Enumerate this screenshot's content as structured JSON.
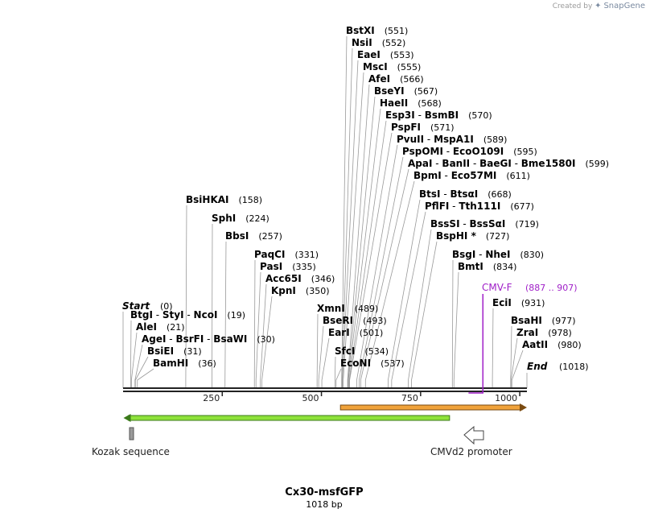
{
  "credit": {
    "prefix": "Created by",
    "brand": "SnapGene"
  },
  "map": {
    "name": "Cx30-msfGFP",
    "length_label": "1018 bp",
    "length": 1018,
    "ticks": [
      "250",
      "500",
      "750",
      "1000"
    ],
    "start_label": "Start",
    "start_pos": "(0)",
    "end_label": "End",
    "end_pos": "(1018)"
  },
  "sites": [
    {
      "names": [
        "BstXI"
      ],
      "pos": 551,
      "label": "(551)"
    },
    {
      "names": [
        "NsiI"
      ],
      "pos": 552,
      "label": "(552)"
    },
    {
      "names": [
        "EaeI"
      ],
      "pos": 553,
      "label": "(553)"
    },
    {
      "names": [
        "MscI"
      ],
      "pos": 555,
      "label": "(555)"
    },
    {
      "names": [
        "AfeI"
      ],
      "pos": 566,
      "label": "(566)"
    },
    {
      "names": [
        "BseYI"
      ],
      "pos": 567,
      "label": "(567)"
    },
    {
      "names": [
        "HaeII"
      ],
      "pos": 568,
      "label": "(568)"
    },
    {
      "names": [
        "Esp3I",
        "BsmBI"
      ],
      "pos": 570,
      "label": "(570)"
    },
    {
      "names": [
        "PspFI"
      ],
      "pos": 571,
      "label": "(571)"
    },
    {
      "names": [
        "PvuII",
        "MspA1I"
      ],
      "pos": 589,
      "label": "(589)"
    },
    {
      "names": [
        "PspOMI",
        "EcoO109I"
      ],
      "pos": 595,
      "label": "(595)"
    },
    {
      "names": [
        "ApaI",
        "BanII",
        "BaeGI",
        "Bme1580I"
      ],
      "pos": 599,
      "label": "(599)"
    },
    {
      "names": [
        "BpmI",
        "Eco57MI"
      ],
      "pos": 611,
      "label": "(611)"
    },
    {
      "names": [
        "BtsI",
        "BtsαI"
      ],
      "pos": 668,
      "label": "(668)"
    },
    {
      "names": [
        "PflFI",
        "Tth111I"
      ],
      "pos": 677,
      "label": "(677)"
    },
    {
      "names": [
        "BssSI",
        "BssSαI"
      ],
      "pos": 719,
      "label": "(719)"
    },
    {
      "names": [
        "BspHI *"
      ],
      "pos": 727,
      "label": "(727)"
    },
    {
      "names": [
        "BsgI",
        "NheI"
      ],
      "pos": 830,
      "label": "(830)"
    },
    {
      "names": [
        "BmtI"
      ],
      "pos": 834,
      "label": "(834)"
    },
    {
      "names": [
        "BsiHKAI"
      ],
      "pos": 158,
      "label": "(158)"
    },
    {
      "names": [
        "SphI"
      ],
      "pos": 224,
      "label": "(224)"
    },
    {
      "names": [
        "BbsI"
      ],
      "pos": 257,
      "label": "(257)"
    },
    {
      "names": [
        "PaqCI"
      ],
      "pos": 331,
      "label": "(331)"
    },
    {
      "names": [
        "PasI"
      ],
      "pos": 335,
      "label": "(335)"
    },
    {
      "names": [
        "Acc65I"
      ],
      "pos": 346,
      "label": "(346)"
    },
    {
      "names": [
        "KpnI"
      ],
      "pos": 350,
      "label": "(350)"
    },
    {
      "names": [
        "BtgI",
        "StyI",
        "NcoI"
      ],
      "pos": 19,
      "label": "(19)"
    },
    {
      "names": [
        "AleI"
      ],
      "pos": 21,
      "label": "(21)"
    },
    {
      "names": [
        "AgeI",
        "BsrFI",
        "BsaWI"
      ],
      "pos": 30,
      "label": "(30)"
    },
    {
      "names": [
        "BsiEI"
      ],
      "pos": 31,
      "label": "(31)"
    },
    {
      "names": [
        "BamHI"
      ],
      "pos": 36,
      "label": "(36)"
    },
    {
      "names": [
        "XmnI"
      ],
      "pos": 489,
      "label": "(489)"
    },
    {
      "names": [
        "BseRI"
      ],
      "pos": 493,
      "label": "(493)"
    },
    {
      "names": [
        "EarI"
      ],
      "pos": 501,
      "label": "(501)"
    },
    {
      "names": [
        "SfcI"
      ],
      "pos": 534,
      "label": "(534)"
    },
    {
      "names": [
        "EcoNI"
      ],
      "pos": 537,
      "label": "(537)"
    },
    {
      "names": [
        "EciI"
      ],
      "pos": 931,
      "label": "(931)"
    },
    {
      "names": [
        "BsaHI"
      ],
      "pos": 977,
      "label": "(977)"
    },
    {
      "names": [
        "ZraI"
      ],
      "pos": 978,
      "label": "(978)"
    },
    {
      "names": [
        "AatII"
      ],
      "pos": 980,
      "label": "(980)"
    }
  ],
  "primer": {
    "name": "CMV-F",
    "range": "(887 .. 907)",
    "start": 887,
    "end": 907,
    "color": "#a020c8"
  },
  "features": [
    {
      "name": "Kozak sequence",
      "start": 18,
      "end": 28,
      "type": "misc"
    },
    {
      "name": "CMVd2 promoter",
      "start": 550,
      "end": 1018,
      "type": "promoter",
      "color": "#f0a23a"
    },
    {
      "name": "",
      "start": 1,
      "end": 823,
      "type": "cds-reverse",
      "color": "#8ee23a"
    }
  ],
  "colors": {
    "backbone": "#222222",
    "site_line": "#999999",
    "text": "#000000"
  }
}
